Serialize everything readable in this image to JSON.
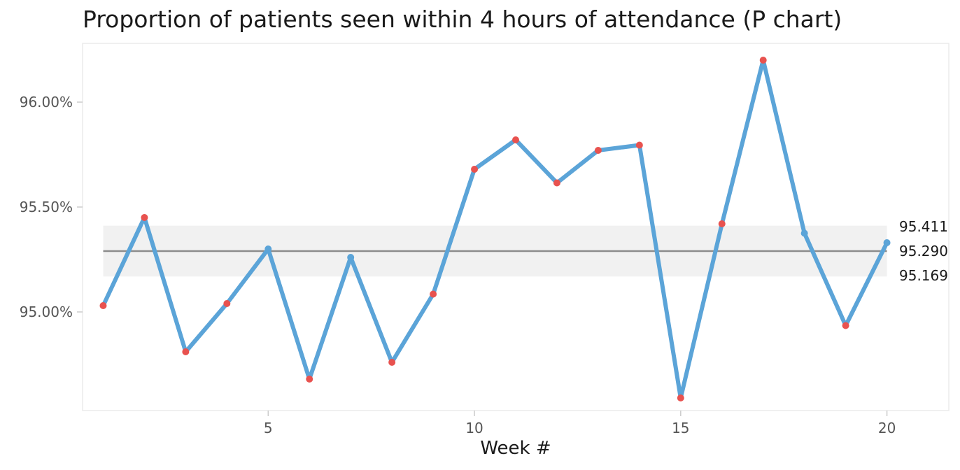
{
  "chart_data": {
    "type": "line",
    "title": "Proportion of patients seen within 4 hours of attendance (P chart)",
    "xlabel": "Week #",
    "ylabel": "",
    "x": [
      1,
      2,
      3,
      4,
      5,
      6,
      7,
      8,
      9,
      10,
      11,
      12,
      13,
      14,
      15,
      16,
      17,
      18,
      19,
      20
    ],
    "series": [
      {
        "values": [
          95.03,
          95.45,
          94.81,
          95.04,
          95.3,
          94.68,
          95.26,
          94.76,
          95.085,
          95.68,
          95.82,
          95.615,
          95.77,
          95.795,
          94.59,
          95.42,
          96.2,
          95.375,
          94.935,
          95.33
        ]
      }
    ],
    "special_cause_points": [
      1,
      2,
      3,
      4,
      6,
      8,
      9,
      10,
      11,
      12,
      13,
      14,
      15,
      16,
      17,
      19
    ],
    "control_limits": {
      "upper": 95.411,
      "centre": 95.29,
      "lower": 95.169
    },
    "limit_labels": [
      "95.411",
      "95.290",
      "95.169"
    ],
    "xlim": [
      0.5,
      21.5
    ],
    "ylim": [
      94.53,
      96.28
    ],
    "x_ticks": [
      5,
      10,
      15,
      20
    ],
    "x_tick_labels": [
      "5",
      "10",
      "15",
      "20"
    ],
    "y_ticks": [
      95.0,
      95.5,
      96.0
    ],
    "y_tick_labels": [
      "95.00%",
      "95.50%",
      "96.00%"
    ],
    "grid": false,
    "legend": "none",
    "colors": {
      "line": "#5BA4D8",
      "special_point": "#E8524F",
      "common_point": "#5BA4D8",
      "centre_line": "#8C8C8C",
      "limit_band": "#F1F1F1",
      "panel_border": "#EBEBEB"
    }
  }
}
